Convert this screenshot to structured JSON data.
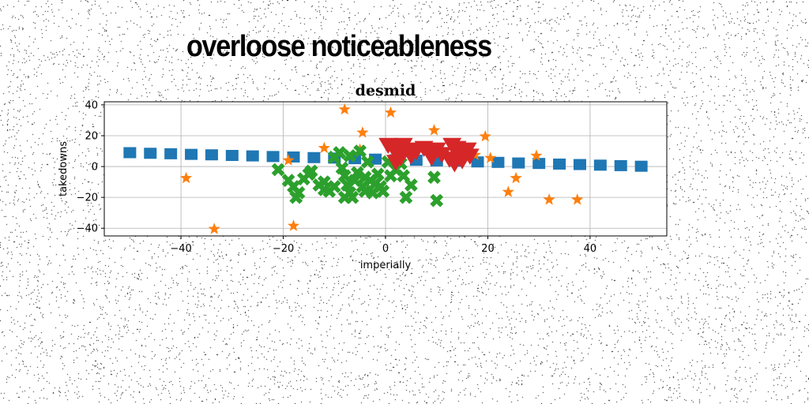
{
  "figure_title": "overloose noticeableness",
  "chart_data": {
    "type": "scatter",
    "title": "desmid",
    "xlabel": "imperially",
    "ylabel": "takedowns",
    "xlim": [
      -55,
      55
    ],
    "ylim": [
      -45,
      42
    ],
    "xticks": [
      -40,
      -20,
      0,
      20,
      40
    ],
    "yticks": [
      -40,
      -20,
      0,
      20,
      40
    ],
    "grid": true,
    "colors": {
      "series_1": "#1f77b4",
      "series_2": "#ff7f0e",
      "series_3": "#2ca02c",
      "series_4": "#d62728"
    },
    "series": [
      {
        "marker": "square",
        "color": "#1f77b4",
        "points": [
          [
            -50,
            9.0
          ],
          [
            -46,
            8.6
          ],
          [
            -42,
            8.3
          ],
          [
            -38,
            7.9
          ],
          [
            -34,
            7.6
          ],
          [
            -30,
            7.2
          ],
          [
            -26,
            6.9
          ],
          [
            -22,
            6.5
          ],
          [
            -18,
            6.2
          ],
          [
            -14,
            5.8
          ],
          [
            -10,
            5.5
          ],
          [
            -6,
            5.1
          ],
          [
            -2,
            4.8
          ],
          [
            2,
            4.4
          ],
          [
            6,
            4.1
          ],
          [
            10,
            3.7
          ],
          [
            14,
            3.4
          ],
          [
            18,
            3.0
          ],
          [
            22,
            2.7
          ],
          [
            26,
            2.3
          ],
          [
            30,
            2.0
          ],
          [
            34,
            1.6
          ],
          [
            38,
            1.3
          ],
          [
            42,
            0.9
          ],
          [
            46,
            0.6
          ],
          [
            50,
            0.2
          ]
        ]
      },
      {
        "marker": "star",
        "color": "#ff7f0e",
        "points": [
          [
            -8,
            37
          ],
          [
            1,
            35
          ],
          [
            -4.5,
            22
          ],
          [
            9.5,
            23.5
          ],
          [
            -39,
            -7.5
          ],
          [
            -33.5,
            -40.5
          ],
          [
            -18,
            -38.5
          ],
          [
            -19,
            4
          ],
          [
            -5,
            11
          ],
          [
            19.5,
            19.5
          ],
          [
            20.5,
            5.5
          ],
          [
            17.5,
            7.5
          ],
          [
            29.5,
            7
          ],
          [
            24,
            -16.5
          ],
          [
            25.5,
            -7.5
          ],
          [
            32,
            -21.5
          ],
          [
            37.5,
            -21.5
          ],
          [
            -12,
            12
          ]
        ]
      },
      {
        "marker": "x",
        "color": "#2ca02c",
        "points": [
          [
            -21,
            -2
          ],
          [
            -19,
            -9
          ],
          [
            -18,
            -13
          ],
          [
            -17,
            -17
          ],
          [
            -16,
            -8
          ],
          [
            -15,
            -5
          ],
          [
            -14.5,
            -3
          ],
          [
            -13,
            -12
          ],
          [
            -12,
            -15
          ],
          [
            -11,
            -16
          ],
          [
            -10,
            -13
          ],
          [
            -10,
            6
          ],
          [
            -9,
            9
          ],
          [
            -8.5,
            -1
          ],
          [
            -8,
            -6
          ],
          [
            -7.5,
            -12
          ],
          [
            -7,
            -17
          ],
          [
            -6.5,
            -20
          ],
          [
            -6,
            -9
          ],
          [
            -5.5,
            -4
          ],
          [
            -5,
            10
          ],
          [
            -4.5,
            -13
          ],
          [
            -4,
            -16
          ],
          [
            -3.5,
            3
          ],
          [
            -3,
            -9
          ],
          [
            -2.5,
            -17
          ],
          [
            -2,
            -11
          ],
          [
            -1.5,
            -5
          ],
          [
            -1,
            -13
          ],
          [
            -0.5,
            -16
          ],
          [
            0.5,
            3
          ],
          [
            1,
            -6
          ],
          [
            2,
            -2
          ],
          [
            3,
            2
          ],
          [
            3.5,
            -6
          ],
          [
            4,
            -20
          ],
          [
            5,
            -12
          ],
          [
            9.5,
            -7
          ],
          [
            10,
            -22
          ],
          [
            -7,
            7
          ],
          [
            -12,
            -10
          ],
          [
            -17.5,
            -20
          ],
          [
            -4,
            -7
          ],
          [
            -8,
            -20
          ]
        ]
      },
      {
        "marker": "triangle-down",
        "color": "#d62728",
        "points": [
          [
            0.5,
            14
          ],
          [
            1.5,
            12
          ],
          [
            2.5,
            10
          ],
          [
            3,
            6
          ],
          [
            3.5,
            14
          ],
          [
            4.5,
            11
          ],
          [
            5,
            7
          ],
          [
            2,
            3
          ],
          [
            7.5,
            12
          ],
          [
            8.5,
            9
          ],
          [
            9,
            6
          ],
          [
            10,
            11
          ],
          [
            11,
            8
          ],
          [
            12.5,
            5
          ],
          [
            13,
            14
          ],
          [
            14,
            12
          ],
          [
            14.5,
            8
          ],
          [
            15,
            4
          ],
          [
            16,
            11
          ],
          [
            16.5,
            7
          ],
          [
            13.5,
            2
          ],
          [
            6,
            10
          ]
        ]
      }
    ]
  }
}
